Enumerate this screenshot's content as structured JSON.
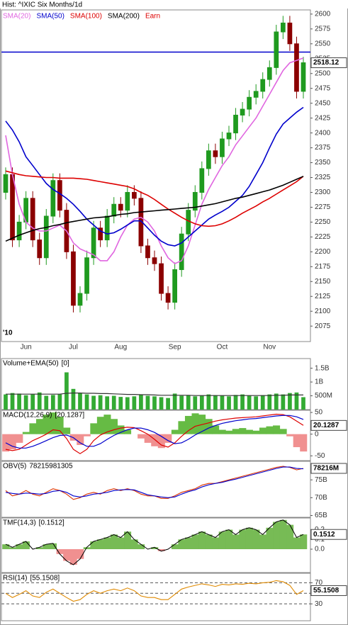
{
  "chart_data": [
    {
      "type": "candlestick",
      "title": "Hist: ^IXIC Six Months/1d",
      "year_label": "'10",
      "categories": [
        null,
        null,
        null,
        "Jun",
        null,
        null,
        null,
        null,
        null,
        null,
        "Jul",
        null,
        null,
        null,
        null,
        null,
        null,
        "Aug",
        null,
        null,
        null,
        null,
        null,
        null,
        null,
        "Sep",
        null,
        null,
        null,
        null,
        null,
        null,
        "Oct",
        null,
        null,
        null,
        null,
        null,
        null,
        "Nov",
        null,
        null,
        null,
        null,
        null
      ],
      "open": [
        2300,
        2330,
        2220,
        2250,
        2290,
        2220,
        2190,
        2260,
        2320,
        2270,
        2200,
        2110,
        2130,
        2190,
        2240,
        2220,
        2260,
        2280,
        2270,
        2300,
        2290,
        2210,
        2190,
        2180,
        2130,
        2115,
        2170,
        2230,
        2270,
        2300,
        2340,
        2370,
        2360,
        2390,
        2400,
        2430,
        2440,
        2460,
        2470,
        2490,
        2510,
        2570,
        2585,
        2550,
        2470
      ],
      "high": [
        2342,
        2342,
        2262,
        2302,
        2302,
        2232,
        2272,
        2332,
        2332,
        2282,
        2212,
        2142,
        2202,
        2252,
        2252,
        2272,
        2292,
        2292,
        2312,
        2312,
        2302,
        2222,
        2202,
        2192,
        2142,
        2182,
        2242,
        2282,
        2312,
        2352,
        2382,
        2382,
        2402,
        2412,
        2442,
        2452,
        2472,
        2482,
        2502,
        2522,
        2582,
        2597,
        2597,
        2562,
        2528
      ],
      "low": [
        2288,
        2208,
        2208,
        2238,
        2208,
        2178,
        2178,
        2248,
        2258,
        2188,
        2098,
        2098,
        2118,
        2178,
        2208,
        2208,
        2248,
        2258,
        2258,
        2278,
        2198,
        2178,
        2168,
        2118,
        2103,
        2103,
        2158,
        2218,
        2258,
        2288,
        2328,
        2348,
        2348,
        2378,
        2388,
        2418,
        2428,
        2448,
        2458,
        2478,
        2498,
        2558,
        2538,
        2458,
        2458
      ],
      "close": [
        2330,
        2220,
        2250,
        2290,
        2220,
        2190,
        2260,
        2320,
        2270,
        2200,
        2110,
        2130,
        2190,
        2240,
        2220,
        2260,
        2280,
        2270,
        2300,
        2290,
        2210,
        2190,
        2180,
        2130,
        2115,
        2170,
        2230,
        2270,
        2300,
        2340,
        2370,
        2360,
        2390,
        2400,
        2430,
        2440,
        2460,
        2470,
        2490,
        2510,
        2570,
        2585,
        2550,
        2470,
        2518.12
      ],
      "up_color": "#1f9a1f",
      "down_color": "#8b0000",
      "series": [
        {
          "name": "SMA(20)",
          "color": "#e066e0",
          "values": [
            2396,
            2330,
            2280,
            2250,
            2240,
            2235,
            2235,
            2240,
            2245,
            2235,
            2215,
            2205,
            2200,
            2195,
            2185,
            2185,
            2200,
            2225,
            2245,
            2255,
            2258,
            2250,
            2235,
            2210,
            2190,
            2180,
            2185,
            2210,
            2245,
            2280,
            2305,
            2325,
            2345,
            2360,
            2380,
            2395,
            2410,
            2425,
            2445,
            2465,
            2485,
            2505,
            2518,
            2522,
            2526
          ]
        },
        {
          "name": "SMA(50)",
          "color": "#0000cc",
          "values": [
            2420,
            2405,
            2385,
            2360,
            2345,
            2330,
            2315,
            2305,
            2298,
            2290,
            2280,
            2268,
            2255,
            2245,
            2235,
            2230,
            2232,
            2238,
            2245,
            2252,
            2252,
            2240,
            2228,
            2218,
            2212,
            2210,
            2215,
            2225,
            2235,
            2245,
            2255,
            2262,
            2268,
            2275,
            2285,
            2295,
            2310,
            2330,
            2350,
            2375,
            2398,
            2415,
            2425,
            2435,
            2443
          ]
        },
        {
          "name": "SMA(100)",
          "color": "#dd0000",
          "values": [
            2336,
            2333,
            2330,
            2328,
            2327,
            2326,
            2325,
            2325,
            2324,
            2324,
            2324,
            2323,
            2322,
            2320,
            2318,
            2316,
            2314,
            2312,
            2310,
            2306,
            2300,
            2295,
            2288,
            2280,
            2272,
            2265,
            2258,
            2252,
            2247,
            2244,
            2243,
            2244,
            2247,
            2252,
            2258,
            2265,
            2271,
            2277,
            2284,
            2290,
            2297,
            2304,
            2311,
            2318,
            2327
          ]
        },
        {
          "name": "SMA(200)",
          "color": "#000000",
          "values": [
            2218,
            2223,
            2228,
            2232,
            2236,
            2239,
            2241,
            2244,
            2246,
            2249,
            2251,
            2253,
            2255,
            2257,
            2258,
            2259,
            2261,
            2263,
            2264,
            2266,
            2267,
            2268,
            2269,
            2270,
            2271,
            2272,
            2273,
            2274,
            2275,
            2277,
            2279,
            2281,
            2284,
            2287,
            2290,
            2292,
            2295,
            2298,
            2301,
            2304,
            2308,
            2312,
            2317,
            2322,
            2327
          ]
        }
      ],
      "legend_extra": {
        "name": "Earn",
        "color": "#dd0000"
      },
      "hline": {
        "value": 2536,
        "color": "#0000cc"
      },
      "ylim": [
        2049,
        2607
      ],
      "yticks": [
        2075,
        2100,
        2125,
        2150,
        2175,
        2200,
        2225,
        2250,
        2275,
        2300,
        2325,
        2350,
        2375,
        2400,
        2425,
        2450,
        2475,
        2500,
        2525,
        2550,
        2575,
        2600
      ]
    },
    {
      "type": "volume",
      "title": "Volume+EMA(50)",
      "legend_value": "[0]",
      "series": [
        {
          "color": "#33aa33",
          "values": [
            550000000.0,
            600000000.0,
            580000000.0,
            520000000.0,
            550000000.0,
            620000000.0,
            500000000.0,
            530000000.0,
            550000000.0,
            1350000000.0,
            750000000.0,
            600000000.0,
            550000000.0,
            500000000.0,
            520000000.0,
            480000000.0,
            500000000.0,
            460000000.0,
            450000000.0,
            480000000.0,
            550000000.0,
            500000000.0,
            480000000.0,
            450000000.0,
            420000000.0,
            580000000.0,
            500000000.0,
            520000000.0,
            480000000.0,
            500000000.0,
            550000000.0,
            520000000.0,
            500000000.0,
            480000000.0,
            530000000.0,
            550000000.0,
            500000000.0,
            480000000.0,
            520000000.0,
            550000000.0,
            580000000.0,
            550000000.0,
            600000000.0,
            620000000.0,
            450000000.0
          ]
        },
        {
          "color": "#333333",
          "values": [
            560000000.0,
            560000000.0,
            560000000.0,
            560000000.0,
            560000000.0,
            560000000.0,
            560000000.0,
            560000000.0,
            560000000.0,
            590000000.0,
            600000000.0,
            600000000.0,
            590000000.0,
            590000000.0,
            580000000.0,
            580000000.0,
            570000000.0,
            560000000.0,
            550000000.0,
            550000000.0,
            540000000.0,
            540000000.0,
            530000000.0,
            520000000.0,
            520000000.0,
            520000000.0,
            520000000.0,
            520000000.0,
            510000000.0,
            510000000.0,
            510000000.0,
            510000000.0,
            510000000.0,
            510000000.0,
            510000000.0,
            510000000.0,
            510000000.0,
            510000000.0,
            510000000.0,
            510000000.0,
            520000000.0,
            520000000.0,
            530000000.0,
            530000000.0,
            530000000.0
          ]
        }
      ],
      "ylim": [
        0,
        1850000000
      ],
      "yticks": [
        {
          "value": 500000000,
          "label": "500M"
        },
        {
          "value": 1000000000,
          "label": "1B"
        },
        {
          "value": 1500000000,
          "label": "1.5B"
        }
      ]
    },
    {
      "type": "macd",
      "title": "MACD(12,26,9)",
      "legend_value": "[20.1287]",
      "histogram": {
        "pos_color": "#66bb44",
        "neg_color": "#f09090",
        "values": [
          -40,
          -35,
          -20,
          5,
          25,
          35,
          45,
          50,
          40,
          15,
          -15,
          -25,
          -5,
          25,
          40,
          45,
          35,
          20,
          10,
          0,
          -10,
          -20,
          -28,
          -32,
          -20,
          10,
          30,
          42,
          48,
          45,
          35,
          20,
          10,
          8,
          12,
          14,
          10,
          8,
          15,
          18,
          20,
          12,
          -5,
          -30,
          -40
        ]
      },
      "series": [
        {
          "color": "#dd0000",
          "values": [
            -35,
            -38,
            -35,
            -25,
            -15,
            -8,
            0,
            10,
            8,
            -10,
            -35,
            -45,
            -35,
            -15,
            -2,
            5,
            10,
            14,
            16,
            15,
            8,
            0,
            -12,
            -25,
            -30,
            -20,
            -5,
            8,
            18,
            22,
            26,
            30,
            33,
            35,
            37,
            38,
            39,
            40,
            42,
            44,
            46,
            45,
            40,
            30,
            20.1287
          ]
        },
        {
          "color": "#0000cc",
          "values": [
            -20,
            -28,
            -32,
            -32,
            -28,
            -22,
            -15,
            -8,
            -3,
            -2,
            -8,
            -20,
            -28,
            -28,
            -22,
            -12,
            -3,
            4,
            10,
            14,
            14,
            10,
            4,
            -5,
            -15,
            -22,
            -20,
            -12,
            -2,
            6,
            14,
            20,
            25,
            28,
            31,
            33,
            35,
            36,
            38,
            40,
            42,
            43,
            43,
            40,
            34
          ]
        }
      ],
      "ylim": [
        -61,
        55
      ],
      "yticks": [
        -50,
        0,
        50
      ]
    },
    {
      "type": "line",
      "title": "OBV(5)",
      "last_label": "78216M",
      "series": [
        {
          "color": "#dd3300",
          "values": [
            72000000000.0,
            70500000000.0,
            71000000000.0,
            72000000000.0,
            71000000000.0,
            70500000000.0,
            71500000000.0,
            72500000000.0,
            72000000000.0,
            71000000000.0,
            69500000000.0,
            70000000000.0,
            71000000000.0,
            71500000000.0,
            71000000000.0,
            72000000000.0,
            72500000000.0,
            72000000000.0,
            72500000000.0,
            72000000000.0,
            71000000000.0,
            70500000000.0,
            70500000000.0,
            69800000000.0,
            69800000000.0,
            70500000000.0,
            71500000000.0,
            72000000000.0,
            72500000000.0,
            73500000000.0,
            74000000000.0,
            74000000000.0,
            74500000000.0,
            75000000000.0,
            75500000000.0,
            76000000000.0,
            76500000000.0,
            77000000000.0,
            77500000000.0,
            78000000000.0,
            78500000000.0,
            78800000000.0,
            78500000000.0,
            77800000000.0,
            78215981305
          ]
        },
        {
          "color": "#0000cc",
          "values": [
            71500000000.0,
            71200000000.0,
            71000000000.0,
            71300000000.0,
            71200000000.0,
            71000000000.0,
            71200000000.0,
            71800000000.0,
            72000000000.0,
            71500000000.0,
            70500000000.0,
            70200000000.0,
            70500000000.0,
            71000000000.0,
            71200000000.0,
            71500000000.0,
            72000000000.0,
            72200000000.0,
            72300000000.0,
            72200000000.0,
            71500000000.0,
            70800000000.0,
            70500000000.0,
            70200000000.0,
            70000000000.0,
            70200000000.0,
            71000000000.0,
            71700000000.0,
            72200000000.0,
            73000000000.0,
            73600000000.0,
            74000000000.0,
            74300000000.0,
            74800000000.0,
            75200000000.0,
            75700000000.0,
            76200000000.0,
            76700000000.0,
            77200000000.0,
            77700000000.0,
            78200000000.0,
            78600000000.0,
            78600000000.0,
            78200000000.0,
            78100000000.0
          ]
        }
      ],
      "ylim": [
        64500000000,
        80200000000
      ],
      "yticks": [
        {
          "value": 65000000000,
          "label": "65B"
        },
        {
          "value": 70000000000,
          "label": "70B"
        },
        {
          "value": 75000000000,
          "label": "75B"
        }
      ]
    },
    {
      "type": "area",
      "title": "TMF(14,3)",
      "legend_value": "[0.1512]",
      "pos_color": "#77bb55",
      "neg_color": "#f09090",
      "line_color": "#000000",
      "values": [
        0.05,
        0.02,
        0.05,
        0.08,
        0.0,
        0.02,
        0.05,
        0.06,
        -0.05,
        -0.12,
        -0.16,
        -0.1,
        0.02,
        0.08,
        0.1,
        0.12,
        0.15,
        0.12,
        0.18,
        0.1,
        0.05,
        0.0,
        0.02,
        -0.02,
        0.0,
        0.05,
        0.1,
        0.12,
        0.15,
        0.18,
        0.15,
        0.12,
        0.18,
        0.2,
        0.15,
        0.2,
        0.22,
        0.2,
        0.15,
        0.22,
        0.28,
        0.3,
        0.25,
        0.12,
        0.1512
      ],
      "ylim": [
        -0.24,
        0.32
      ],
      "yticks": [
        {
          "value": 0,
          "label": "0.0"
        },
        0.1,
        0.2
      ]
    },
    {
      "type": "line",
      "title": "RSI(14)",
      "legend_value": "[55.1508]",
      "dashed_grid": true,
      "series": [
        {
          "color": "#e08a00",
          "values": [
            50,
            42,
            48,
            55,
            45,
            42,
            52,
            58,
            50,
            42,
            35,
            38,
            48,
            55,
            50,
            55,
            58,
            55,
            60,
            55,
            45,
            42,
            42,
            38,
            38,
            48,
            58,
            62,
            65,
            68,
            66,
            63,
            67,
            66,
            68,
            67,
            69,
            68,
            70,
            71,
            74,
            72,
            65,
            48,
            55.1508
          ]
        }
      ],
      "ylim": [
        -2,
        88
      ],
      "yticks": [
        30,
        50,
        70
      ]
    }
  ]
}
